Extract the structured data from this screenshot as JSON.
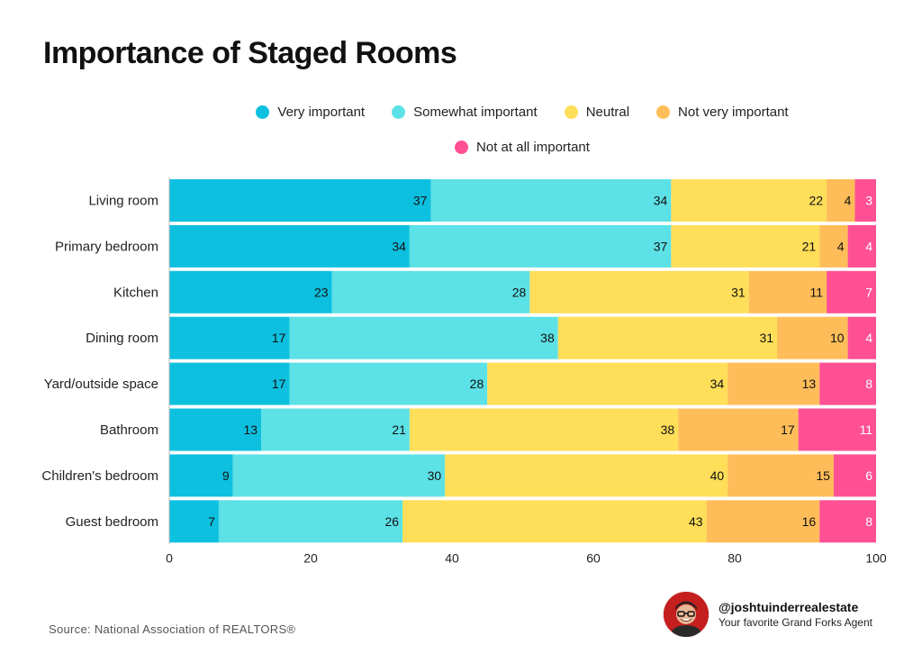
{
  "chart_data": {
    "type": "bar",
    "orientation": "horizontal",
    "stacked": true,
    "title": "Importance of Staged Rooms",
    "categories": [
      "Living room",
      "Primary bedroom",
      "Kitchen",
      "Dining room",
      "Yard/outside space",
      "Bathroom",
      "Children's bedroom",
      "Guest bedroom"
    ],
    "series": [
      {
        "name": "Very important",
        "color": "#0dc0e0",
        "values": [
          37,
          34,
          23,
          17,
          17,
          13,
          9,
          7
        ]
      },
      {
        "name": "Somewhat important",
        "color": "#5ce1e6",
        "values": [
          34,
          37,
          28,
          38,
          28,
          21,
          30,
          26
        ]
      },
      {
        "name": "Neutral",
        "color": "#ffde59",
        "values": [
          22,
          21,
          31,
          31,
          34,
          38,
          40,
          43
        ]
      },
      {
        "name": "Not very important",
        "color": "#ffbd59",
        "values": [
          4,
          4,
          11,
          10,
          13,
          17,
          15,
          16
        ]
      },
      {
        "name": "Not at all important",
        "color": "#ff5094",
        "values": [
          3,
          4,
          7,
          4,
          8,
          11,
          6,
          8
        ]
      }
    ],
    "xlim": [
      0,
      100
    ],
    "xticks": [
      0,
      20,
      40,
      60,
      80,
      100
    ],
    "legend_position": "top",
    "grid": false
  },
  "source_note": "Source: National Association of REALTORS®",
  "credit": {
    "handle": "@joshtuinderrealestate",
    "tagline": "Your favorite Grand Forks Agent"
  }
}
